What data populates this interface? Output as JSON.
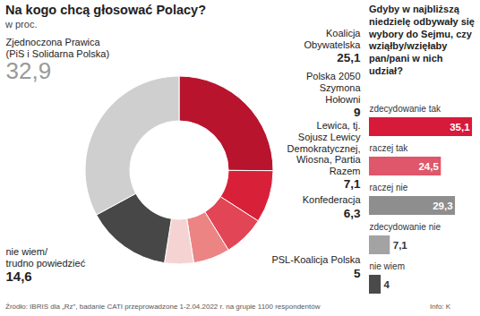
{
  "chart_data": [
    {
      "type": "pie",
      "title": "Na kogo chcą głosować Polacy?",
      "subtitle": "w proc.",
      "categories": [
        "Koalicja Obywatelska",
        "Polska 2050 Szymona Hołowni",
        "Lewica, tj. Sojusz Lewicy Demokratycznej, Wiosna, Partia Razem",
        "Konfederacja",
        "PSL-Koalicja Polska",
        "nie wiem/ trudno powiedzieć",
        "Zjednoczona Prawica (PiS i Solidarna Polska)"
      ],
      "values": [
        25.1,
        9,
        7.1,
        6.3,
        5,
        14.6,
        32.9
      ],
      "value_labels": [
        "25,1",
        "9",
        "7,1",
        "6,3",
        "5",
        "14,6",
        "32,9"
      ],
      "colors": [
        "#b8142e",
        "#d82039",
        "#e24556",
        "#ec8484",
        "#f6d3d3",
        "#474747",
        "#cfcfcf"
      ],
      "data_labels": true
    },
    {
      "type": "bar",
      "orientation": "horizontal",
      "title": "Gdyby w najbliższą niedzielę odbywały się wybory do Sejmu, czy wziąłby/wzięłaby pan/pani w nich udział?",
      "categories": [
        "zdecydowanie tak",
        "raczej tak",
        "raczej nie",
        "zdecydowanie nie",
        "nie wiem"
      ],
      "values": [
        35.1,
        24.5,
        29.3,
        7.1,
        4
      ],
      "value_labels": [
        "35,1",
        "24,5",
        "29,3",
        "7,1",
        "4"
      ],
      "colors": [
        "#d7193a",
        "#e0566a",
        "#8e8e8e",
        "#a3a3a3",
        "#4a4a4a"
      ],
      "xlim": [
        0,
        36
      ],
      "tick_labels": false,
      "data_labels": true
    }
  ],
  "source": "Źródło: IBRIS dla „Rz”, badanie CATI przeprowadzone 1-2.04.2022 r. na grupie 1100 respondentów",
  "credit": "Info: K"
}
